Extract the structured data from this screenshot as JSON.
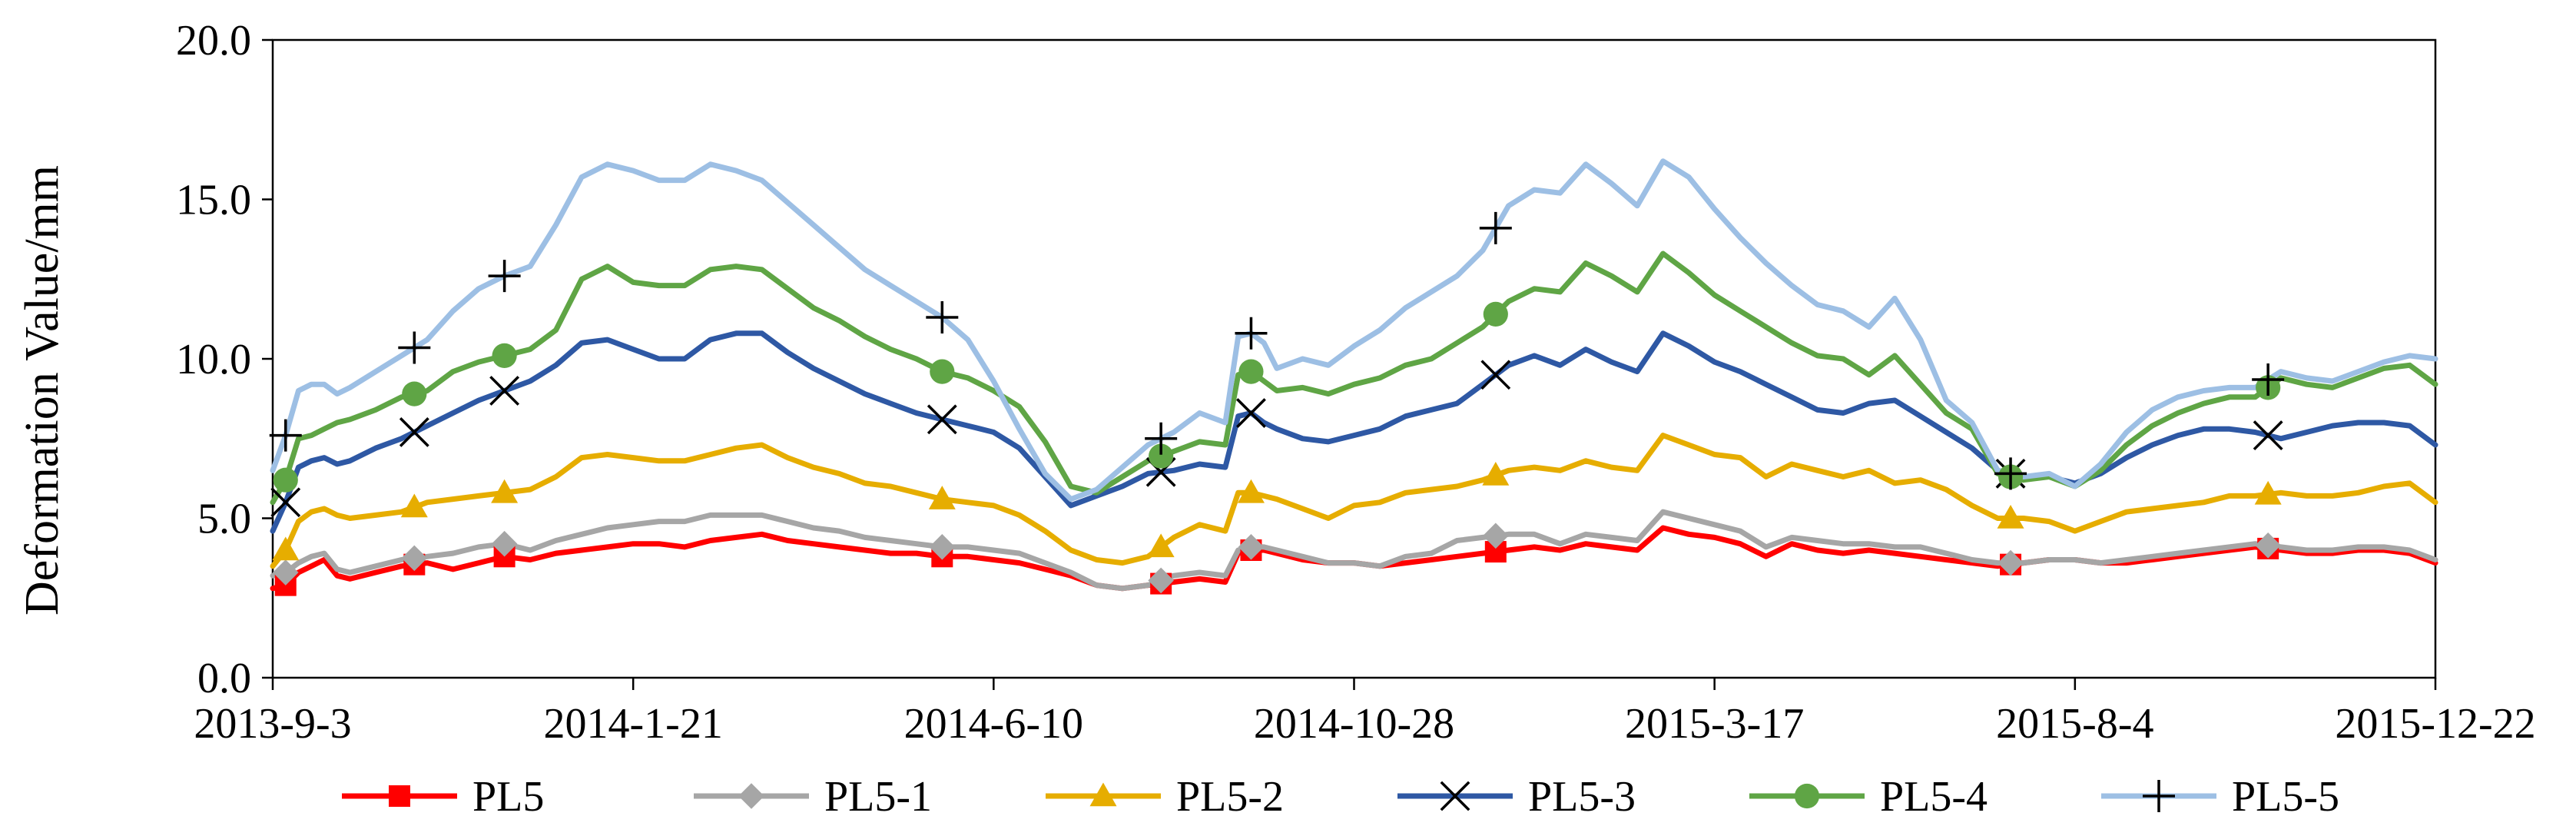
{
  "chart_data": {
    "type": "line",
    "title": "",
    "xlabel": "",
    "ylabel": "Deformation Value/mm",
    "ylim": [
      0,
      20
    ],
    "yticks": [
      0,
      5,
      10,
      15,
      20
    ],
    "ytick_labels": [
      "0.0",
      "5.0",
      "10.0",
      "15.0",
      "20.0"
    ],
    "xlim": [
      0,
      840
    ],
    "xtick_positions": [
      0,
      140,
      280,
      420,
      560,
      700,
      840
    ],
    "xtick_labels": [
      "2013-9-3",
      "2014-1-21",
      "2014-6-10",
      "2014-10-28",
      "2015-3-17",
      "2015-8-4",
      "2015-12-22"
    ],
    "grid": false,
    "legend_position": "bottom",
    "x": [
      0,
      5,
      10,
      15,
      20,
      25,
      30,
      40,
      50,
      60,
      70,
      80,
      90,
      100,
      110,
      120,
      130,
      140,
      150,
      160,
      170,
      180,
      190,
      200,
      210,
      220,
      230,
      240,
      250,
      260,
      270,
      280,
      290,
      300,
      310,
      320,
      330,
      340,
      350,
      360,
      370,
      375,
      380,
      385,
      390,
      400,
      410,
      420,
      430,
      440,
      450,
      460,
      470,
      480,
      490,
      500,
      510,
      520,
      530,
      540,
      550,
      560,
      570,
      580,
      590,
      600,
      610,
      620,
      630,
      640,
      650,
      660,
      670,
      680,
      690,
      700,
      710,
      720,
      730,
      740,
      750,
      760,
      770,
      780,
      790,
      800,
      810,
      820,
      830,
      840
    ],
    "series": [
      {
        "name": "PL5",
        "color": "#ff0000",
        "marker": "square",
        "values": [
          2.8,
          2.9,
          3.3,
          3.5,
          3.7,
          3.2,
          3.1,
          3.3,
          3.5,
          3.6,
          3.4,
          3.6,
          3.8,
          3.7,
          3.9,
          4.0,
          4.1,
          4.2,
          4.2,
          4.1,
          4.3,
          4.4,
          4.5,
          4.3,
          4.2,
          4.1,
          4.0,
          3.9,
          3.9,
          3.8,
          3.8,
          3.7,
          3.6,
          3.4,
          3.2,
          2.9,
          2.8,
          2.9,
          3.0,
          3.1,
          3.0,
          3.9,
          4.0,
          4.0,
          3.9,
          3.7,
          3.6,
          3.6,
          3.5,
          3.6,
          3.7,
          3.8,
          3.9,
          4.0,
          4.1,
          4.0,
          4.2,
          4.1,
          4.0,
          4.7,
          4.5,
          4.4,
          4.2,
          3.8,
          4.2,
          4.0,
          3.9,
          4.0,
          3.9,
          3.8,
          3.7,
          3.6,
          3.5,
          3.6,
          3.7,
          3.7,
          3.6,
          3.6,
          3.7,
          3.8,
          3.9,
          4.0,
          4.1,
          4.0,
          3.9,
          3.9,
          4.0,
          4.0,
          3.9,
          3.6
        ]
      },
      {
        "name": "PL5-1",
        "color": "#a6a6a6",
        "marker": "diamond",
        "values": [
          3.2,
          3.3,
          3.6,
          3.8,
          3.9,
          3.4,
          3.3,
          3.5,
          3.7,
          3.8,
          3.9,
          4.1,
          4.2,
          4.0,
          4.3,
          4.5,
          4.7,
          4.8,
          4.9,
          4.9,
          5.1,
          5.1,
          5.1,
          4.9,
          4.7,
          4.6,
          4.4,
          4.3,
          4.2,
          4.1,
          4.1,
          4.0,
          3.9,
          3.6,
          3.3,
          2.9,
          2.8,
          2.9,
          3.2,
          3.3,
          3.2,
          4.0,
          4.1,
          4.1,
          4.0,
          3.8,
          3.6,
          3.6,
          3.5,
          3.8,
          3.9,
          4.3,
          4.4,
          4.5,
          4.5,
          4.2,
          4.5,
          4.4,
          4.3,
          5.2,
          5.0,
          4.8,
          4.6,
          4.1,
          4.4,
          4.3,
          4.2,
          4.2,
          4.1,
          4.1,
          3.9,
          3.7,
          3.6,
          3.6,
          3.7,
          3.7,
          3.6,
          3.7,
          3.8,
          3.9,
          4.0,
          4.1,
          4.2,
          4.1,
          4.0,
          4.0,
          4.1,
          4.1,
          4.0,
          3.7
        ]
      },
      {
        "name": "PL5-2",
        "color": "#e6ad00",
        "marker": "triangle",
        "values": [
          3.5,
          4.0,
          4.9,
          5.2,
          5.3,
          5.1,
          5.0,
          5.1,
          5.2,
          5.5,
          5.6,
          5.7,
          5.8,
          5.9,
          6.3,
          6.9,
          7.0,
          6.9,
          6.8,
          6.8,
          7.0,
          7.2,
          7.3,
          6.9,
          6.6,
          6.4,
          6.1,
          6.0,
          5.8,
          5.6,
          5.5,
          5.4,
          5.1,
          4.6,
          4.0,
          3.7,
          3.6,
          3.8,
          4.4,
          4.8,
          4.6,
          5.8,
          5.8,
          5.7,
          5.6,
          5.3,
          5.0,
          5.4,
          5.5,
          5.8,
          5.9,
          6.0,
          6.2,
          6.5,
          6.6,
          6.5,
          6.8,
          6.6,
          6.5,
          7.6,
          7.3,
          7.0,
          6.9,
          6.3,
          6.7,
          6.5,
          6.3,
          6.5,
          6.1,
          6.2,
          5.9,
          5.4,
          5.0,
          5.0,
          4.9,
          4.6,
          4.9,
          5.2,
          5.3,
          5.4,
          5.5,
          5.7,
          5.7,
          5.8,
          5.7,
          5.7,
          5.8,
          6.0,
          6.1,
          5.5
        ]
      },
      {
        "name": "PL5-3",
        "color": "#2e58a4",
        "marker": "x",
        "values": [
          4.6,
          5.5,
          6.6,
          6.8,
          6.9,
          6.7,
          6.8,
          7.2,
          7.5,
          7.9,
          8.3,
          8.7,
          9.0,
          9.3,
          9.8,
          10.5,
          10.6,
          10.3,
          10.0,
          10.0,
          10.6,
          10.8,
          10.8,
          10.2,
          9.7,
          9.3,
          8.9,
          8.6,
          8.3,
          8.1,
          7.9,
          7.7,
          7.2,
          6.3,
          5.4,
          5.7,
          6.0,
          6.4,
          6.5,
          6.7,
          6.6,
          8.2,
          8.3,
          8.0,
          7.8,
          7.5,
          7.4,
          7.6,
          7.8,
          8.2,
          8.4,
          8.6,
          9.2,
          9.8,
          10.1,
          9.8,
          10.3,
          9.9,
          9.6,
          10.8,
          10.4,
          9.9,
          9.6,
          9.2,
          8.8,
          8.4,
          8.3,
          8.6,
          8.7,
          8.2,
          7.7,
          7.2,
          6.5,
          6.3,
          6.3,
          6.1,
          6.4,
          6.9,
          7.3,
          7.6,
          7.8,
          7.8,
          7.7,
          7.5,
          7.7,
          7.9,
          8.0,
          8.0,
          7.9,
          7.3
        ]
      },
      {
        "name": "PL5-4",
        "color": "#5fa545",
        "marker": "circle",
        "values": [
          5.5,
          6.2,
          7.5,
          7.6,
          7.8,
          8.0,
          8.1,
          8.4,
          8.8,
          9.0,
          9.6,
          9.9,
          10.1,
          10.3,
          10.9,
          12.5,
          12.9,
          12.4,
          12.3,
          12.3,
          12.8,
          12.9,
          12.8,
          12.2,
          11.6,
          11.2,
          10.7,
          10.3,
          10.0,
          9.6,
          9.4,
          9.0,
          8.5,
          7.4,
          6.0,
          5.8,
          6.3,
          6.8,
          7.1,
          7.4,
          7.3,
          9.5,
          9.6,
          9.3,
          9.0,
          9.1,
          8.9,
          9.2,
          9.4,
          9.8,
          10.0,
          10.5,
          11.0,
          11.8,
          12.2,
          12.1,
          13.0,
          12.6,
          12.1,
          13.3,
          12.7,
          12.0,
          11.5,
          11.0,
          10.5,
          10.1,
          10.0,
          9.5,
          10.1,
          9.2,
          8.3,
          7.8,
          6.4,
          6.2,
          6.3,
          6.0,
          6.5,
          7.3,
          7.9,
          8.3,
          8.6,
          8.8,
          8.8,
          9.4,
          9.2,
          9.1,
          9.4,
          9.7,
          9.8,
          9.2
        ]
      },
      {
        "name": "PL5-5",
        "color": "#9dbfe4",
        "marker": "plus",
        "values": [
          6.5,
          7.6,
          9.0,
          9.2,
          9.2,
          8.9,
          9.1,
          9.6,
          10.1,
          10.6,
          11.5,
          12.2,
          12.6,
          12.9,
          14.2,
          15.7,
          16.1,
          15.9,
          15.6,
          15.6,
          16.1,
          15.9,
          15.6,
          14.9,
          14.2,
          13.5,
          12.8,
          12.3,
          11.8,
          11.3,
          10.6,
          9.3,
          7.8,
          6.4,
          5.6,
          5.9,
          6.6,
          7.3,
          7.7,
          8.3,
          8.0,
          10.7,
          10.8,
          10.5,
          9.7,
          10.0,
          9.8,
          10.4,
          10.9,
          11.6,
          12.1,
          12.6,
          13.4,
          14.8,
          15.3,
          15.2,
          16.1,
          15.5,
          14.8,
          16.2,
          15.7,
          14.7,
          13.8,
          13.0,
          12.3,
          11.7,
          11.5,
          11.0,
          11.9,
          10.6,
          8.7,
          8.0,
          6.5,
          6.3,
          6.4,
          6.0,
          6.7,
          7.7,
          8.4,
          8.8,
          9.0,
          9.1,
          9.1,
          9.6,
          9.4,
          9.3,
          9.6,
          9.9,
          10.1,
          10.0
        ]
      }
    ],
    "marker_x": [
      5,
      55,
      90,
      260,
      345,
      380,
      475,
      675,
      775
    ]
  }
}
